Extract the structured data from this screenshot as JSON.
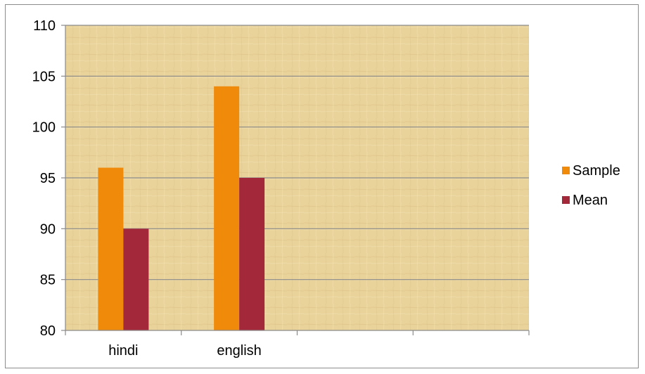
{
  "chart_data": {
    "type": "bar",
    "title": "",
    "xlabel": "",
    "ylabel": "",
    "categories": [
      "hindi",
      "english",
      "",
      ""
    ],
    "series": [
      {
        "name": "Sample",
        "values": [
          96,
          104,
          null,
          null
        ],
        "color": "#f08a0a"
      },
      {
        "name": "Mean",
        "values": [
          90,
          95,
          null,
          null
        ],
        "color": "#a3283a"
      }
    ],
    "ylim": [
      80,
      110
    ],
    "yticks": [
      80,
      85,
      90,
      95,
      100,
      105,
      110
    ],
    "grid": true,
    "legend_position": "right",
    "plot_background": "#e9d39b"
  }
}
